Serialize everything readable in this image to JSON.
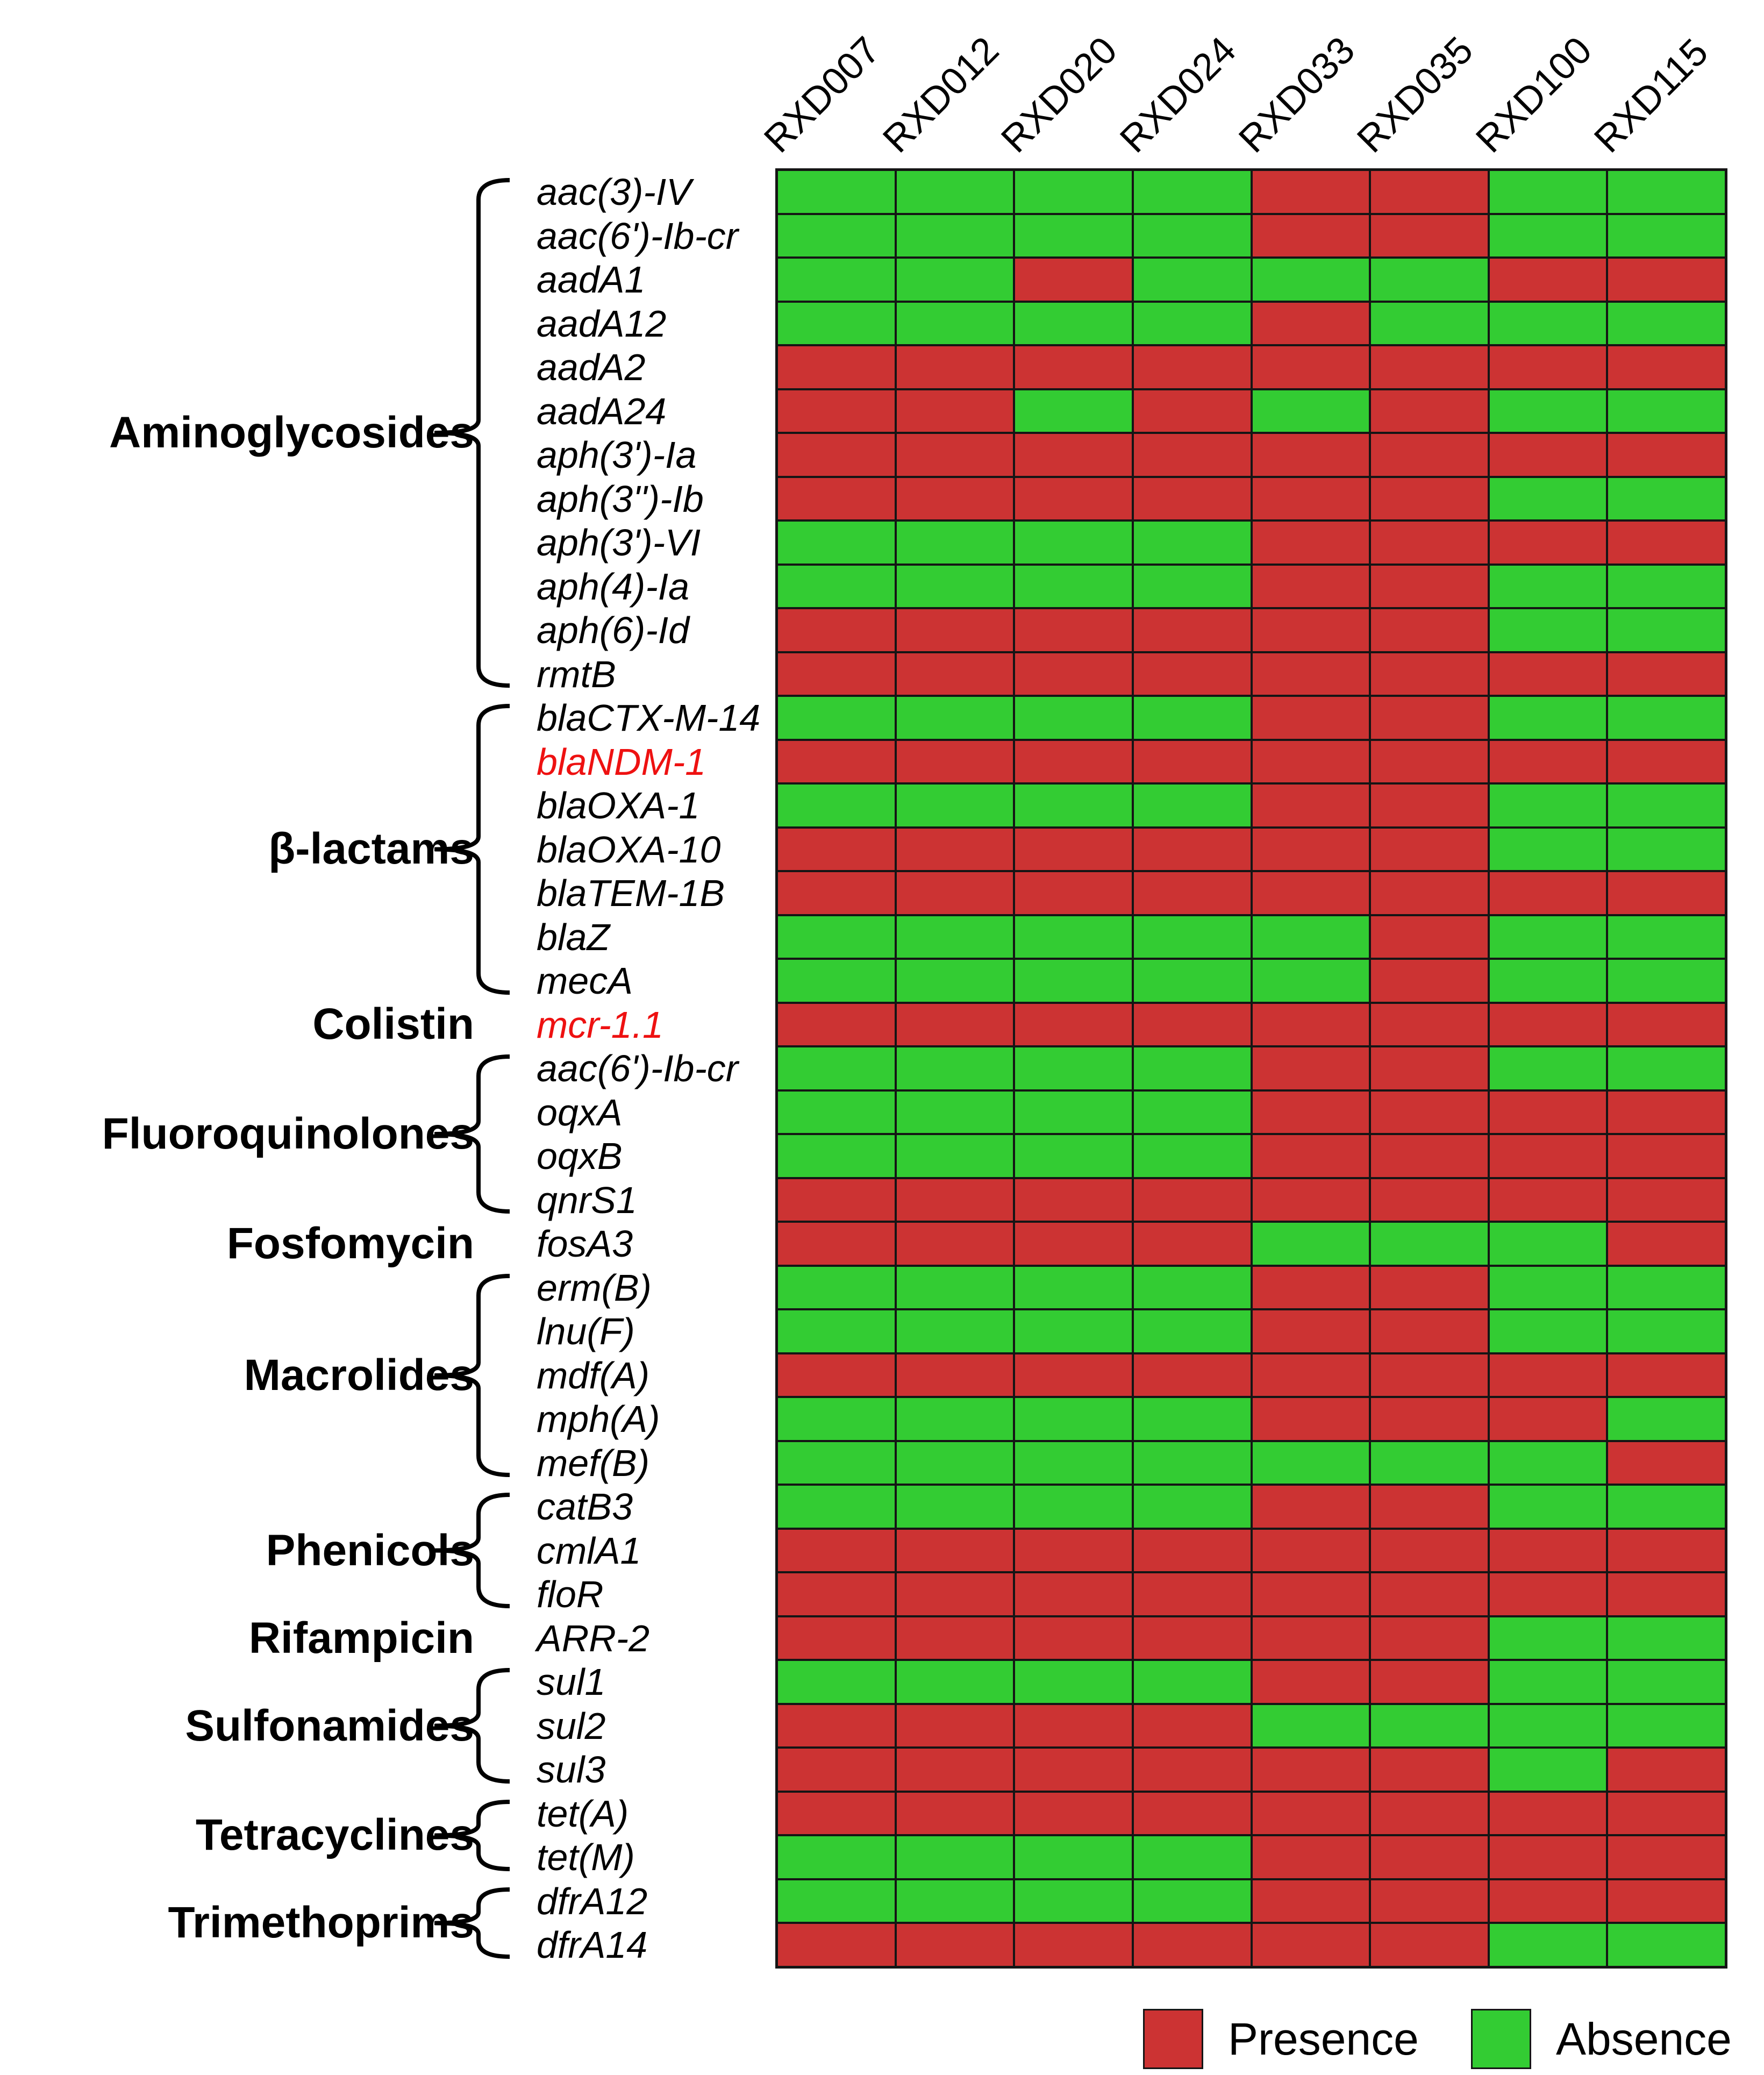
{
  "columns": [
    "RXD007",
    "RXD012",
    "RXD020",
    "RXD024",
    "RXD033",
    "RXD035",
    "RXD100",
    "RXD115"
  ],
  "legend": {
    "items": [
      {
        "label": "Presence",
        "value": 1,
        "color": "#cc3333"
      },
      {
        "label": "Absence",
        "value": 0,
        "color": "#33cc33"
      }
    ]
  },
  "colors": {
    "presence": "#cc3333",
    "absence": "#33cc33",
    "grid_line": "#151515",
    "gene_highlight": "#ee1111",
    "text": "#000000",
    "background": "#ffffff"
  },
  "chart_data": {
    "type": "heatmap",
    "title": "",
    "x_labels": [
      "RXD007",
      "RXD012",
      "RXD020",
      "RXD024",
      "RXD033",
      "RXD035",
      "RXD100",
      "RXD115"
    ],
    "value_encoding": {
      "1": "Presence",
      "0": "Absence"
    },
    "legend_position": "bottom-right",
    "groups": [
      {
        "name": "Aminoglycosides",
        "genes": [
          {
            "label": "aac(3)-IV",
            "highlight": false,
            "values": [
              0,
              0,
              0,
              0,
              1,
              1,
              0,
              0
            ]
          },
          {
            "label": "aac(6')-Ib-cr",
            "highlight": false,
            "values": [
              0,
              0,
              0,
              0,
              1,
              1,
              0,
              0
            ]
          },
          {
            "label": "aadA1",
            "highlight": false,
            "values": [
              0,
              0,
              1,
              0,
              0,
              0,
              1,
              1
            ]
          },
          {
            "label": "aadA12",
            "highlight": false,
            "values": [
              0,
              0,
              0,
              0,
              1,
              0,
              0,
              0
            ]
          },
          {
            "label": "aadA2",
            "highlight": false,
            "values": [
              1,
              1,
              1,
              1,
              1,
              1,
              1,
              1
            ]
          },
          {
            "label": "aadA24",
            "highlight": false,
            "values": [
              1,
              1,
              0,
              1,
              0,
              1,
              0,
              0
            ]
          },
          {
            "label": "aph(3')-Ia",
            "highlight": false,
            "values": [
              1,
              1,
              1,
              1,
              1,
              1,
              1,
              1
            ]
          },
          {
            "label": "aph(3'')-Ib",
            "highlight": false,
            "values": [
              1,
              1,
              1,
              1,
              1,
              1,
              0,
              0
            ]
          },
          {
            "label": "aph(3')-VI",
            "highlight": false,
            "values": [
              0,
              0,
              0,
              0,
              1,
              1,
              1,
              1
            ]
          },
          {
            "label": "aph(4)-Ia",
            "highlight": false,
            "values": [
              0,
              0,
              0,
              0,
              1,
              1,
              0,
              0
            ]
          },
          {
            "label": "aph(6)-Id",
            "highlight": false,
            "values": [
              1,
              1,
              1,
              1,
              1,
              1,
              0,
              0
            ]
          },
          {
            "label": "rmtB",
            "highlight": false,
            "values": [
              1,
              1,
              1,
              1,
              1,
              1,
              1,
              1
            ]
          }
        ]
      },
      {
        "name": "β-lactams",
        "genes": [
          {
            "label": "blaCTX-M-14",
            "highlight": false,
            "values": [
              0,
              0,
              0,
              0,
              1,
              1,
              0,
              0
            ]
          },
          {
            "label": "blaNDM-1",
            "highlight": true,
            "values": [
              1,
              1,
              1,
              1,
              1,
              1,
              1,
              1
            ]
          },
          {
            "label": "blaOXA-1",
            "highlight": false,
            "values": [
              0,
              0,
              0,
              0,
              1,
              1,
              0,
              0
            ]
          },
          {
            "label": "blaOXA-10",
            "highlight": false,
            "values": [
              1,
              1,
              1,
              1,
              1,
              1,
              0,
              0
            ]
          },
          {
            "label": "blaTEM-1B",
            "highlight": false,
            "values": [
              1,
              1,
              1,
              1,
              1,
              1,
              1,
              1
            ]
          },
          {
            "label": "blaZ",
            "highlight": false,
            "values": [
              0,
              0,
              0,
              0,
              0,
              1,
              0,
              0
            ]
          },
          {
            "label": "mecA",
            "highlight": false,
            "values": [
              0,
              0,
              0,
              0,
              0,
              1,
              0,
              0
            ]
          }
        ]
      },
      {
        "name": "Colistin",
        "genes": [
          {
            "label": "mcr-1.1",
            "highlight": true,
            "values": [
              1,
              1,
              1,
              1,
              1,
              1,
              1,
              1
            ]
          }
        ]
      },
      {
        "name": "Fluoroquinolones",
        "genes": [
          {
            "label": "aac(6')-Ib-cr",
            "highlight": false,
            "values": [
              0,
              0,
              0,
              0,
              1,
              1,
              0,
              0
            ]
          },
          {
            "label": "oqxA",
            "highlight": false,
            "values": [
              0,
              0,
              0,
              0,
              1,
              1,
              1,
              1
            ]
          },
          {
            "label": "oqxB",
            "highlight": false,
            "values": [
              0,
              0,
              0,
              0,
              1,
              1,
              1,
              1
            ]
          },
          {
            "label": "qnrS1",
            "highlight": false,
            "values": [
              1,
              1,
              1,
              1,
              1,
              1,
              1,
              1
            ]
          }
        ]
      },
      {
        "name": "Fosfomycin",
        "genes": [
          {
            "label": "fosA3",
            "highlight": false,
            "values": [
              1,
              1,
              1,
              1,
              0,
              0,
              0,
              1
            ]
          }
        ]
      },
      {
        "name": "Macrolides",
        "genes": [
          {
            "label": "erm(B)",
            "highlight": false,
            "values": [
              0,
              0,
              0,
              0,
              1,
              1,
              0,
              0
            ]
          },
          {
            "label": "lnu(F)",
            "highlight": false,
            "values": [
              0,
              0,
              0,
              0,
              1,
              1,
              0,
              0
            ]
          },
          {
            "label": "mdf(A)",
            "highlight": false,
            "values": [
              1,
              1,
              1,
              1,
              1,
              1,
              1,
              1
            ]
          },
          {
            "label": "mph(A)",
            "highlight": false,
            "values": [
              0,
              0,
              0,
              0,
              1,
              1,
              1,
              0
            ]
          },
          {
            "label": "mef(B)",
            "highlight": false,
            "values": [
              0,
              0,
              0,
              0,
              0,
              0,
              0,
              1
            ]
          }
        ]
      },
      {
        "name": "Phenicols",
        "genes": [
          {
            "label": "catB3",
            "highlight": false,
            "values": [
              0,
              0,
              0,
              0,
              1,
              1,
              0,
              0
            ]
          },
          {
            "label": "cmlA1",
            "highlight": false,
            "values": [
              1,
              1,
              1,
              1,
              1,
              1,
              1,
              1
            ]
          },
          {
            "label": "floR",
            "highlight": false,
            "values": [
              1,
              1,
              1,
              1,
              1,
              1,
              1,
              1
            ]
          }
        ]
      },
      {
        "name": "Rifampicin",
        "genes": [
          {
            "label": "ARR-2",
            "highlight": false,
            "values": [
              1,
              1,
              1,
              1,
              1,
              1,
              0,
              0
            ]
          }
        ]
      },
      {
        "name": "Sulfonamides",
        "genes": [
          {
            "label": "sul1",
            "highlight": false,
            "values": [
              0,
              0,
              0,
              0,
              1,
              1,
              0,
              0
            ]
          },
          {
            "label": "sul2",
            "highlight": false,
            "values": [
              1,
              1,
              1,
              1,
              0,
              0,
              0,
              0
            ]
          },
          {
            "label": "sul3",
            "highlight": false,
            "values": [
              1,
              1,
              1,
              1,
              1,
              1,
              0,
              1
            ]
          }
        ]
      },
      {
        "name": "Tetracyclines",
        "genes": [
          {
            "label": "tet(A)",
            "highlight": false,
            "values": [
              1,
              1,
              1,
              1,
              1,
              1,
              1,
              1
            ]
          },
          {
            "label": "tet(M)",
            "highlight": false,
            "values": [
              0,
              0,
              0,
              0,
              1,
              1,
              1,
              1
            ]
          }
        ]
      },
      {
        "name": "Trimethoprims",
        "genes": [
          {
            "label": "dfrA12",
            "highlight": false,
            "values": [
              0,
              0,
              0,
              0,
              1,
              1,
              1,
              1
            ]
          },
          {
            "label": "dfrA14",
            "highlight": false,
            "values": [
              1,
              1,
              1,
              1,
              1,
              1,
              0,
              0
            ]
          }
        ]
      }
    ]
  }
}
